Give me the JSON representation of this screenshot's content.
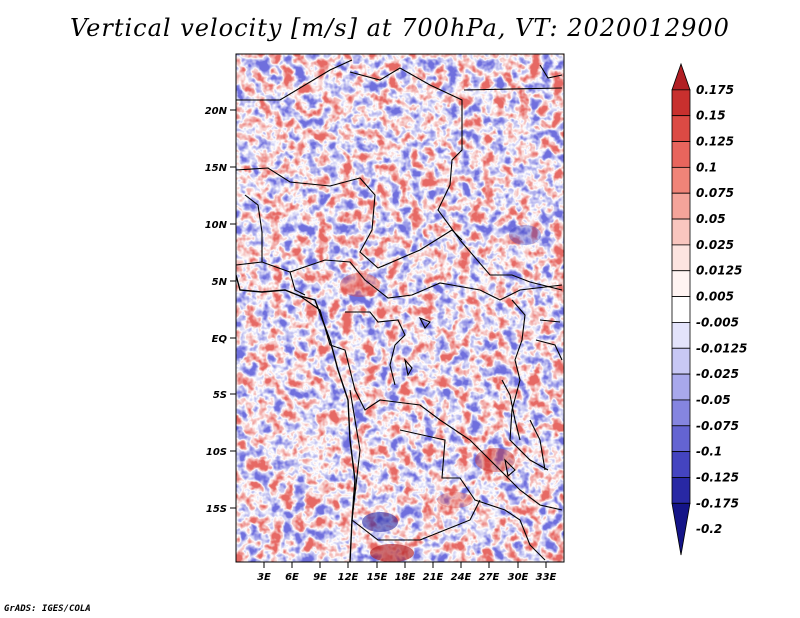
{
  "title": "Vertical velocity [m/s] at 700hPa, VT: 2020012900",
  "credit": "GrADS: IGES/COLA",
  "map": {
    "lat_labels": [
      "20N",
      "15N",
      "10N",
      "5N",
      "EQ",
      "5S",
      "10S",
      "15S"
    ],
    "lon_labels": [
      "3E",
      "6E",
      "9E",
      "12E",
      "15E",
      "18E",
      "21E",
      "24E",
      "27E",
      "30E",
      "33E"
    ]
  },
  "colorbar": {
    "labels": [
      "0.175",
      "0.15",
      "0.125",
      "0.1",
      "0.075",
      "0.05",
      "0.025",
      "0.0125",
      "0.005",
      "-0.005",
      "-0.0125",
      "-0.025",
      "-0.05",
      "-0.075",
      "-0.1",
      "-0.125",
      "-0.175",
      "-0.2"
    ],
    "colors": [
      "#b11f24",
      "#c8302e",
      "#dc4a44",
      "#e8655d",
      "#f08478",
      "#f5a49a",
      "#f9c6bf",
      "#fde4e0",
      "#fff4f2",
      "#ffffff",
      "#e3e3fb",
      "#c8c8f5",
      "#a8a8ec",
      "#8585e0",
      "#6464d2",
      "#4444c0",
      "#2828a4",
      "#141488"
    ]
  }
}
